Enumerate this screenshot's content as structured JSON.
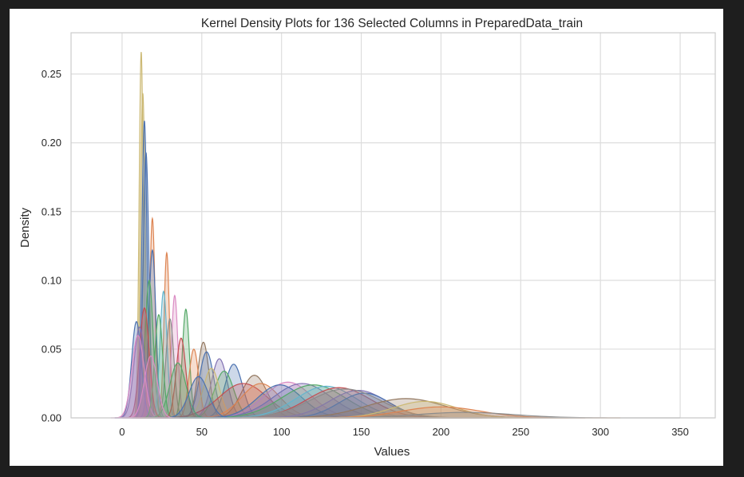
{
  "chart_data": {
    "type": "area",
    "title": "Kernel Density Plots for 136 Selected Columns in PreparedData_train",
    "xlabel": "Values",
    "ylabel": "Density",
    "xlim": [
      -32,
      372
    ],
    "ylim": [
      0,
      0.28
    ],
    "xticks": [
      0,
      50,
      100,
      150,
      200,
      250,
      300,
      350
    ],
    "yticks": [
      0.0,
      0.05,
      0.1,
      0.15,
      0.2,
      0.25
    ],
    "xtick_labels": [
      "0",
      "50",
      "100",
      "150",
      "200",
      "250",
      "300",
      "350"
    ],
    "ytick_labels": [
      "0.00",
      "0.05",
      "0.10",
      "0.15",
      "0.20",
      "0.25"
    ],
    "grid": true,
    "legend": "none",
    "series": [
      {
        "color": "#ccb974",
        "peak_x": 12,
        "peak_y": 0.266,
        "spread": 1.3
      },
      {
        "color": "#ccb974",
        "peak_x": 13,
        "peak_y": 0.236,
        "spread": 1.5
      },
      {
        "color": "#4c72b0",
        "peak_x": 14,
        "peak_y": 0.216,
        "spread": 1.6
      },
      {
        "color": "#4c72b0",
        "peak_x": 15,
        "peak_y": 0.193,
        "spread": 1.8
      },
      {
        "color": "#dd8452",
        "peak_x": 19,
        "peak_y": 0.145,
        "spread": 1.7
      },
      {
        "color": "#4c72b0",
        "peak_x": 19,
        "peak_y": 0.122,
        "spread": 2.2
      },
      {
        "color": "#dd8452",
        "peak_x": 28,
        "peak_y": 0.12,
        "spread": 1.7
      },
      {
        "color": "#55a868",
        "peak_x": 17,
        "peak_y": 0.1,
        "spread": 2.5
      },
      {
        "color": "#64b5cd",
        "peak_x": 26,
        "peak_y": 0.092,
        "spread": 2.2
      },
      {
        "color": "#da8bc3",
        "peak_x": 33,
        "peak_y": 0.089,
        "spread": 2.0
      },
      {
        "color": "#55a868",
        "peak_x": 40,
        "peak_y": 0.079,
        "spread": 2.2
      },
      {
        "color": "#8c8c8c",
        "peak_x": 30,
        "peak_y": 0.072,
        "spread": 2.5
      },
      {
        "color": "#c44e52",
        "peak_x": 14,
        "peak_y": 0.08,
        "spread": 3.0
      },
      {
        "color": "#4c72b0",
        "peak_x": 9,
        "peak_y": 0.07,
        "spread": 3.0
      },
      {
        "color": "#8172b3",
        "peak_x": 11,
        "peak_y": 0.066,
        "spread": 3.5
      },
      {
        "color": "#da8bc3",
        "peak_x": 10,
        "peak_y": 0.06,
        "spread": 3.8
      },
      {
        "color": "#55a868",
        "peak_x": 23,
        "peak_y": 0.075,
        "spread": 2.5
      },
      {
        "color": "#937860",
        "peak_x": 51,
        "peak_y": 0.055,
        "spread": 3.5
      },
      {
        "color": "#4c72b0",
        "peak_x": 53,
        "peak_y": 0.048,
        "spread": 4.5
      },
      {
        "color": "#dd8452",
        "peak_x": 45,
        "peak_y": 0.05,
        "spread": 3.0
      },
      {
        "color": "#c44e52",
        "peak_x": 37,
        "peak_y": 0.058,
        "spread": 3.0
      },
      {
        "color": "#8172b3",
        "peak_x": 61,
        "peak_y": 0.043,
        "spread": 5.0
      },
      {
        "color": "#4c72b0",
        "peak_x": 70,
        "peak_y": 0.039,
        "spread": 5.5
      },
      {
        "color": "#55a868",
        "peak_x": 64,
        "peak_y": 0.034,
        "spread": 6.0
      },
      {
        "color": "#ccb974",
        "peak_x": 56,
        "peak_y": 0.036,
        "spread": 5.0
      },
      {
        "color": "#937860",
        "peak_x": 83,
        "peak_y": 0.031,
        "spread": 8.0
      },
      {
        "color": "#c44e52",
        "peak_x": 76,
        "peak_y": 0.025,
        "spread": 15.0
      },
      {
        "color": "#dd8452",
        "peak_x": 87,
        "peak_y": 0.025,
        "spread": 12.0
      },
      {
        "color": "#da8bc3",
        "peak_x": 104,
        "peak_y": 0.026,
        "spread": 15.0
      },
      {
        "color": "#8172b3",
        "peak_x": 113,
        "peak_y": 0.025,
        "spread": 18.0
      },
      {
        "color": "#4c72b0",
        "peak_x": 99,
        "peak_y": 0.024,
        "spread": 14.0
      },
      {
        "color": "#55a868",
        "peak_x": 120,
        "peak_y": 0.024,
        "spread": 20.0
      },
      {
        "color": "#64b5cd",
        "peak_x": 128,
        "peak_y": 0.023,
        "spread": 19.0
      },
      {
        "color": "#c44e52",
        "peak_x": 136,
        "peak_y": 0.022,
        "spread": 20.0
      },
      {
        "color": "#8172b3",
        "peak_x": 148,
        "peak_y": 0.02,
        "spread": 18.0
      },
      {
        "color": "#4c72b0",
        "peak_x": 152,
        "peak_y": 0.018,
        "spread": 16.0
      },
      {
        "color": "#8c8c8c",
        "peak_x": 140,
        "peak_y": 0.021,
        "spread": 22.0
      },
      {
        "color": "#937860",
        "peak_x": 178,
        "peak_y": 0.014,
        "spread": 25.0
      },
      {
        "color": "#ccb974",
        "peak_x": 190,
        "peak_y": 0.012,
        "spread": 20.0
      },
      {
        "color": "#dd8452",
        "peak_x": 200,
        "peak_y": 0.008,
        "spread": 25.0
      },
      {
        "color": "#8c8c8c",
        "peak_x": 215,
        "peak_y": 0.004,
        "spread": 30.0
      },
      {
        "color": "#55a868",
        "peak_x": 35,
        "peak_y": 0.04,
        "spread": 5.0
      },
      {
        "color": "#4c72b0",
        "peak_x": 48,
        "peak_y": 0.03,
        "spread": 6.0
      },
      {
        "color": "#da8bc3",
        "peak_x": 18,
        "peak_y": 0.045,
        "spread": 4.0
      }
    ]
  }
}
